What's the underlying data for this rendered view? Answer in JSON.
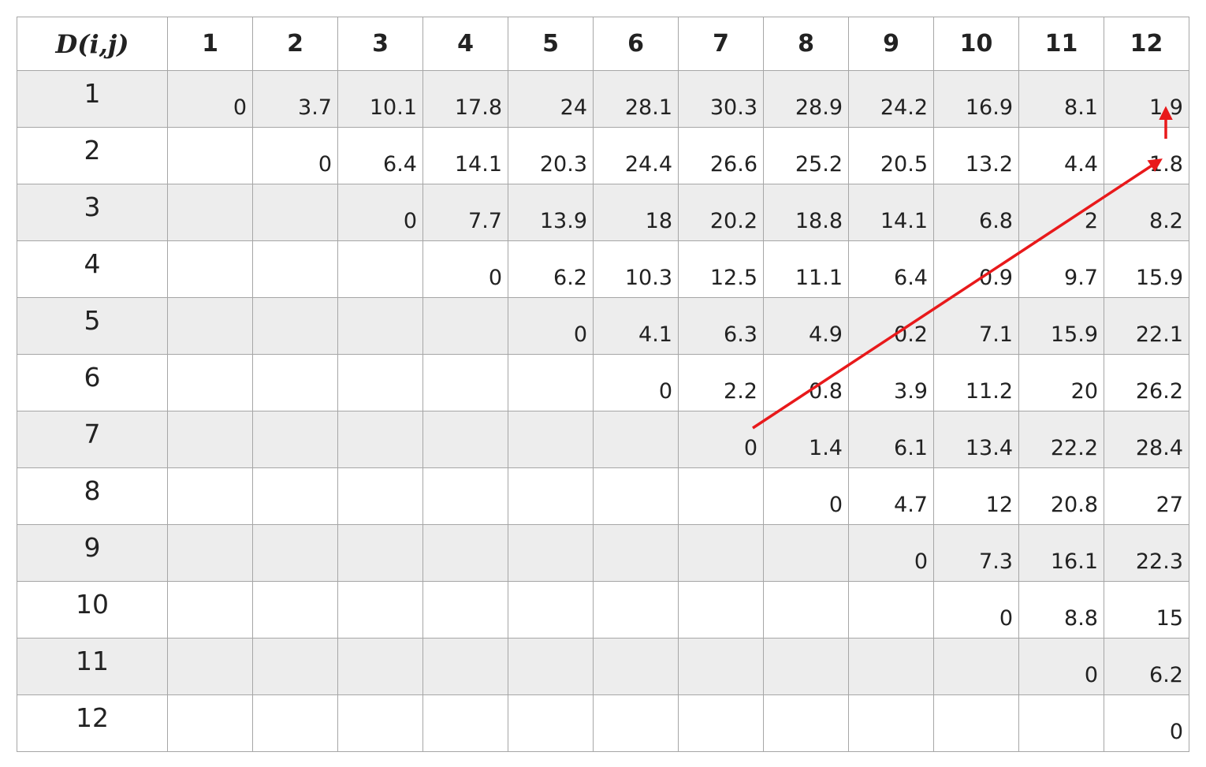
{
  "table": {
    "corner": "D(i,j)",
    "columns": [
      "1",
      "2",
      "3",
      "4",
      "5",
      "6",
      "7",
      "8",
      "9",
      "10",
      "11",
      "12"
    ],
    "rows": [
      {
        "label": "1",
        "cells": [
          "0",
          "3.7",
          "10.1",
          "17.8",
          "24",
          "28.1",
          "30.3",
          "28.9",
          "24.2",
          "16.9",
          "8.1",
          "1.9"
        ]
      },
      {
        "label": "2",
        "cells": [
          "",
          "0",
          "6.4",
          "14.1",
          "20.3",
          "24.4",
          "26.6",
          "25.2",
          "20.5",
          "13.2",
          "4.4",
          "1.8"
        ]
      },
      {
        "label": "3",
        "cells": [
          "",
          "",
          "0",
          "7.7",
          "13.9",
          "18",
          "20.2",
          "18.8",
          "14.1",
          "6.8",
          "2",
          "8.2"
        ]
      },
      {
        "label": "4",
        "cells": [
          "",
          "",
          "",
          "0",
          "6.2",
          "10.3",
          "12.5",
          "11.1",
          "6.4",
          "0.9",
          "9.7",
          "15.9"
        ]
      },
      {
        "label": "5",
        "cells": [
          "",
          "",
          "",
          "",
          "0",
          "4.1",
          "6.3",
          "4.9",
          "0.2",
          "7.1",
          "15.9",
          "22.1"
        ]
      },
      {
        "label": "6",
        "cells": [
          "",
          "",
          "",
          "",
          "",
          "0",
          "2.2",
          "0.8",
          "3.9",
          "11.2",
          "20",
          "26.2"
        ]
      },
      {
        "label": "7",
        "cells": [
          "",
          "",
          "",
          "",
          "",
          "",
          "0",
          "1.4",
          "6.1",
          "13.4",
          "22.2",
          "28.4"
        ]
      },
      {
        "label": "8",
        "cells": [
          "",
          "",
          "",
          "",
          "",
          "",
          "",
          "0",
          "4.7",
          "12",
          "20.8",
          "27"
        ]
      },
      {
        "label": "9",
        "cells": [
          "",
          "",
          "",
          "",
          "",
          "",
          "",
          "",
          "0",
          "7.3",
          "16.1",
          "22.3"
        ]
      },
      {
        "label": "10",
        "cells": [
          "",
          "",
          "",
          "",
          "",
          "",
          "",
          "",
          "",
          "0",
          "8.8",
          "15"
        ]
      },
      {
        "label": "11",
        "cells": [
          "",
          "",
          "",
          "",
          "",
          "",
          "",
          "",
          "",
          "",
          "0",
          "6.2"
        ]
      },
      {
        "label": "12",
        "cells": [
          "",
          "",
          "",
          "",
          "",
          "",
          "",
          "",
          "",
          "",
          "",
          "0"
        ]
      }
    ]
  },
  "annotation": {
    "color": "#e8191b",
    "path": "red arrows from D(7,7) to D(2,12) then up to D(1,12)"
  }
}
